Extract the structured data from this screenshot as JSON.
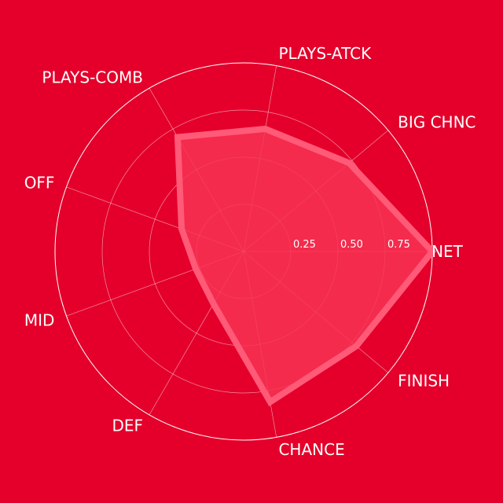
{
  "chart_data": {
    "type": "radar",
    "categories": [
      "NET",
      "BIG CHNC",
      "PLAYS-ATCK",
      "PLAYS-COMB",
      "OFF",
      "MID",
      "DEF",
      "CHANCE",
      "FINISH"
    ],
    "series": [
      {
        "values": [
          1.0,
          0.73,
          0.66,
          0.7,
          0.35,
          0.27,
          0.32,
          0.81,
          0.78
        ]
      }
    ],
    "rlim": [
      0,
      1
    ],
    "ticks": [
      0.25,
      0.5,
      0.75
    ],
    "tick_labels": [
      "0.25",
      "0.50",
      "0.75"
    ],
    "grid": true
  },
  "colors": {
    "background": "#e4002b",
    "series_line": "#ff5a78",
    "series_fill": "#f73354",
    "grid": "#ffffff"
  }
}
